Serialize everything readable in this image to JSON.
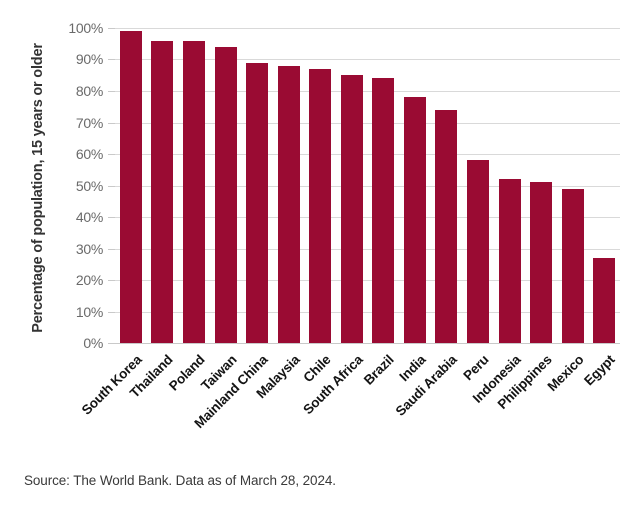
{
  "chart_data": {
    "type": "bar",
    "categories": [
      "South Korea",
      "Thailand",
      "Poland",
      "Taiwan",
      "Mainland China",
      "Malaysia",
      "Chile",
      "South Africa",
      "Brazil",
      "India",
      "Saudi Arabia",
      "Peru",
      "Indonesia",
      "Philippines",
      "Mexico",
      "Egypt"
    ],
    "values": [
      99,
      96,
      96,
      94,
      89,
      88,
      87,
      85,
      84,
      78,
      74,
      58,
      52,
      51,
      49,
      27
    ],
    "title": "",
    "xlabel": "",
    "ylabel": "Percentage of population, 15 years or older",
    "ylim": [
      0,
      100
    ],
    "ytick_step": 10,
    "ytick_suffix": "%",
    "grid": true,
    "legend_position": "none"
  },
  "source_note": "Source: The World Bank. Data as of March 28, 2024.",
  "colors": {
    "bar": "#9A0B33",
    "gridline": "#D9D9D9",
    "axis_line": "#C9C9C9",
    "tick_label": "#6A6A6A",
    "category_label": "#141414",
    "axis_title": "#333333",
    "source_text": "#3A3A3A"
  }
}
